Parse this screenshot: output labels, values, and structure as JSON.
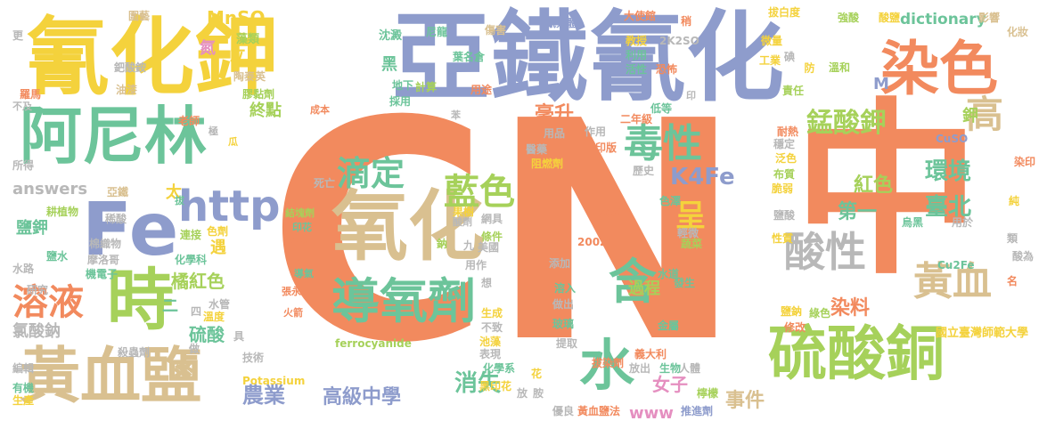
{
  "colors": {
    "orange": "#f28a5e",
    "blue": "#8e9ccc",
    "green": "#6cc49a",
    "lime": "#a6d15a",
    "yellow": "#f4d23c",
    "tan": "#d9c090",
    "pink": "#e58fc0",
    "gray": "#b8b8b8"
  },
  "words": [
    {
      "t": "CN",
      "c": "orange"
    },
    {
      "t": "中",
      "c": "orange"
    },
    {
      "t": "氰化鉀",
      "c": "yellow"
    },
    {
      "t": "亞鐵氰化",
      "c": "blue"
    },
    {
      "t": "染色",
      "c": "orange"
    },
    {
      "t": "阿尼林",
      "c": "green"
    },
    {
      "t": "氧化",
      "c": "tan"
    },
    {
      "t": "Fe",
      "c": "blue"
    },
    {
      "t": "時",
      "c": "lime"
    },
    {
      "t": "黃血鹽",
      "c": "tan"
    },
    {
      "t": "硫酸銅",
      "c": "lime"
    },
    {
      "t": "導氧劑",
      "c": "green"
    },
    {
      "t": "水",
      "c": "green"
    },
    {
      "t": "毒性",
      "c": "green"
    },
    {
      "t": "酸性",
      "c": "gray"
    },
    {
      "t": "黃血",
      "c": "tan"
    },
    {
      "t": "藍色",
      "c": "lime"
    },
    {
      "t": "滴定",
      "c": "green"
    },
    {
      "t": "溶液",
      "c": "orange"
    },
    {
      "t": "含",
      "c": "green"
    },
    {
      "t": "http",
      "c": "blue"
    },
    {
      "t": "高",
      "c": "tan"
    },
    {
      "t": "錳酸鉀",
      "c": "lime"
    },
    {
      "t": "呈",
      "c": "yellow"
    },
    {
      "t": "K4Fe",
      "c": "blue"
    },
    {
      "t": "環境",
      "c": "green"
    },
    {
      "t": "臺北",
      "c": "green"
    },
    {
      "t": "紅色",
      "c": "lime"
    },
    {
      "t": "第一",
      "c": "green"
    },
    {
      "t": "染料",
      "c": "orange"
    },
    {
      "t": "消失",
      "c": "green"
    },
    {
      "t": "高級中學",
      "c": "blue"
    },
    {
      "t": "事件",
      "c": "tan"
    },
    {
      "t": "女子",
      "c": "pink"
    },
    {
      "t": "農業",
      "c": "blue"
    },
    {
      "t": "過程",
      "c": "lime"
    },
    {
      "t": "毫升",
      "c": "orange"
    },
    {
      "t": "終點",
      "c": "lime"
    },
    {
      "t": "黑",
      "c": "green"
    },
    {
      "t": "MnSO",
      "c": "yellow"
    },
    {
      "t": "市立",
      "c": "yellow"
    },
    {
      "t": "dictionary",
      "c": "green"
    },
    {
      "t": "answers",
      "c": "gray"
    },
    {
      "t": "鹽鉀",
      "c": "green"
    },
    {
      "t": "硫酸",
      "c": "green"
    },
    {
      "t": "橘紅色",
      "c": "lime"
    },
    {
      "t": "氯酸鈉",
      "c": "gray"
    },
    {
      "t": "遇",
      "c": "yellow"
    },
    {
      "t": "二",
      "c": "green"
    },
    {
      "t": "太",
      "c": "yellow"
    },
    {
      "t": "www",
      "c": "pink"
    },
    {
      "t": "氮",
      "c": "pink"
    },
    {
      "t": "鉀",
      "c": "lime"
    },
    {
      "t": "ferrocyanide",
      "c": "lime"
    },
    {
      "t": "Potassium",
      "c": "yellow"
    },
    {
      "t": "Cu2Fe",
      "c": "green"
    },
    {
      "t": "國立臺灣師範大學",
      "c": "yellow"
    },
    {
      "t": "黃血鹽法",
      "c": "orange"
    },
    {
      "t": "推進劑",
      "c": "blue"
    },
    {
      "t": "大使館",
      "c": "orange"
    },
    {
      "t": "拔白度",
      "c": "yellow"
    },
    {
      "t": "強酸",
      "c": "lime"
    },
    {
      "t": "酸鹽",
      "c": "yellow"
    },
    {
      "t": "影響",
      "c": "tan"
    },
    {
      "t": "化妝",
      "c": "tan"
    },
    {
      "t": "圍藝",
      "c": "tan"
    },
    {
      "t": "氰氣體",
      "c": "blue"
    },
    {
      "t": "藻類",
      "c": "lime"
    },
    {
      "t": "沈澱",
      "c": "green"
    },
    {
      "t": "尼龍",
      "c": "green"
    },
    {
      "t": "傷害",
      "c": "tan"
    },
    {
      "t": "葉名倉",
      "c": "green"
    },
    {
      "t": "鈀酸銨",
      "c": "gray"
    },
    {
      "t": "油漆",
      "c": "tan"
    },
    {
      "t": "羅馬",
      "c": "orange"
    },
    {
      "t": "不及",
      "c": "gray"
    },
    {
      "t": "老師",
      "c": "orange"
    },
    {
      "t": "陶泰英",
      "c": "tan"
    },
    {
      "t": "膠黏劑",
      "c": "lime"
    },
    {
      "t": "地下",
      "c": "green"
    },
    {
      "t": "計算",
      "c": "lime"
    },
    {
      "t": "採用",
      "c": "green"
    },
    {
      "t": "用途",
      "c": "orange"
    },
    {
      "t": "成本",
      "c": "orange"
    },
    {
      "t": "苯",
      "c": "gray"
    },
    {
      "t": "教授",
      "c": "yellow"
    },
    {
      "t": "利用",
      "c": "green"
    },
    {
      "t": "活性",
      "c": "green"
    },
    {
      "t": "恐怖",
      "c": "orange"
    },
    {
      "t": "微量",
      "c": "yellow"
    },
    {
      "t": "工業",
      "c": "yellow"
    },
    {
      "t": "溫和",
      "c": "lime"
    },
    {
      "t": "責任",
      "c": "lime"
    },
    {
      "t": "防",
      "c": "yellow"
    },
    {
      "t": "二年級",
      "c": "orange"
    },
    {
      "t": "作用",
      "c": "gray"
    },
    {
      "t": "用品",
      "c": "gray"
    },
    {
      "t": "印",
      "c": "gray"
    },
    {
      "t": "醫藥",
      "c": "gray"
    },
    {
      "t": "阻燃劑",
      "c": "yellow"
    },
    {
      "t": "印版",
      "c": "orange"
    },
    {
      "t": "歷史",
      "c": "gray"
    },
    {
      "t": "耐熱",
      "c": "orange"
    },
    {
      "t": "穩定",
      "c": "gray"
    },
    {
      "t": "泛色",
      "c": "yellow"
    },
    {
      "t": "布質",
      "c": "lime"
    },
    {
      "t": "脆弱",
      "c": "yellow"
    },
    {
      "t": "鹽酸",
      "c": "gray"
    },
    {
      "t": "性質",
      "c": "yellow"
    },
    {
      "t": "用於",
      "c": "gray"
    },
    {
      "t": "烏黑",
      "c": "green"
    },
    {
      "t": "CuSO",
      "c": "blue"
    },
    {
      "t": "染印",
      "c": "orange"
    },
    {
      "t": "純",
      "c": "yellow"
    },
    {
      "t": "類",
      "c": "gray"
    },
    {
      "t": "酸為",
      "c": "gray"
    },
    {
      "t": "名",
      "c": "orange"
    },
    {
      "t": "亞鐵",
      "c": "tan"
    },
    {
      "t": "耕植物",
      "c": "lime"
    },
    {
      "t": "稀酸",
      "c": "gray"
    },
    {
      "t": "棉織物",
      "c": "gray"
    },
    {
      "t": "摩洛哥",
      "c": "gray"
    },
    {
      "t": "機電子",
      "c": "green"
    },
    {
      "t": "化學科",
      "c": "green"
    },
    {
      "t": "研究",
      "c": "gray"
    },
    {
      "t": "水路",
      "c": "gray"
    },
    {
      "t": "鹽水",
      "c": "green"
    },
    {
      "t": "所得",
      "c": "gray"
    },
    {
      "t": "連接",
      "c": "lime"
    },
    {
      "t": "色劑",
      "c": "yellow"
    },
    {
      "t": "水管",
      "c": "gray"
    },
    {
      "t": "溫度",
      "c": "yellow"
    },
    {
      "t": "殺蟲劑",
      "c": "gray"
    },
    {
      "t": "技術",
      "c": "gray"
    },
    {
      "t": "編輯",
      "c": "gray"
    },
    {
      "t": "有機",
      "c": "green"
    },
    {
      "t": "生產",
      "c": "yellow"
    },
    {
      "t": "死亡",
      "c": "gray"
    },
    {
      "t": "結塊劑",
      "c": "lime"
    },
    {
      "t": "印花",
      "c": "green"
    },
    {
      "t": "氰化鉀",
      "c": "orange"
    },
    {
      "t": "劇毒",
      "c": "orange"
    },
    {
      "t": "導氣",
      "c": "green"
    },
    {
      "t": "張永佶",
      "c": "orange"
    },
    {
      "t": "火箭",
      "c": "orange"
    },
    {
      "t": "果樹",
      "c": "yellow"
    },
    {
      "t": "網具",
      "c": "gray"
    },
    {
      "t": "條件",
      "c": "lime"
    },
    {
      "t": "美國",
      "c": "gray"
    },
    {
      "t": "用作",
      "c": "gray"
    },
    {
      "t": "想",
      "c": "gray"
    },
    {
      "t": "生成",
      "c": "yellow"
    },
    {
      "t": "不致",
      "c": "gray"
    },
    {
      "t": "池藻",
      "c": "yellow"
    },
    {
      "t": "表現",
      "c": "gray"
    },
    {
      "t": "化學系",
      "c": "green"
    },
    {
      "t": "黑印花",
      "c": "yellow"
    },
    {
      "t": "2002年",
      "c": "orange"
    },
    {
      "t": "一月",
      "c": "orange"
    },
    {
      "t": "添加",
      "c": "gray"
    },
    {
      "t": "溶入",
      "c": "green"
    },
    {
      "t": "做出",
      "c": "gray"
    },
    {
      "t": "玻璃",
      "c": "green"
    },
    {
      "t": "提取",
      "c": "gray"
    },
    {
      "t": "拔染劑",
      "c": "orange"
    },
    {
      "t": "義大利",
      "c": "orange"
    },
    {
      "t": "生物",
      "c": "green"
    },
    {
      "t": "放出",
      "c": "gray"
    },
    {
      "t": "人體",
      "c": "gray"
    },
    {
      "t": "修改",
      "c": "orange"
    },
    {
      "t": "鹽鈉",
      "c": "yellow"
    },
    {
      "t": "綠色",
      "c": "lime"
    },
    {
      "t": "金屬",
      "c": "green"
    },
    {
      "t": "水道",
      "c": "green"
    },
    {
      "t": "發生",
      "c": "green"
    },
    {
      "t": "蔬菜",
      "c": "lime"
    },
    {
      "t": "輕微",
      "c": "gray"
    },
    {
      "t": "蒸處",
      "c": "orange"
    },
    {
      "t": "色澤",
      "c": "green"
    },
    {
      "t": "檸檬",
      "c": "lime"
    },
    {
      "t": "優良",
      "c": "gray"
    },
    {
      "t": "胺",
      "c": "gray"
    },
    {
      "t": "花",
      "c": "yellow"
    },
    {
      "t": "放",
      "c": "gray"
    },
    {
      "t": "瓜",
      "c": "yellow"
    },
    {
      "t": "極",
      "c": "gray"
    },
    {
      "t": "做",
      "c": "gray"
    },
    {
      "t": "具",
      "c": "gray"
    },
    {
      "t": "四",
      "c": "gray"
    },
    {
      "t": "更",
      "c": "gray"
    },
    {
      "t": "九",
      "c": "gray"
    },
    {
      "t": "鈉",
      "c": "lime"
    },
    {
      "t": "酸劑",
      "c": "gray"
    },
    {
      "t": "M",
      "c": "blue"
    },
    {
      "t": "2K2SO",
      "c": "gray"
    },
    {
      "t": "稍",
      "c": "orange"
    },
    {
      "t": "低等",
      "c": "green"
    },
    {
      "t": "碘",
      "c": "gray"
    },
    {
      "t": "拔",
      "c": "green"
    }
  ]
}
